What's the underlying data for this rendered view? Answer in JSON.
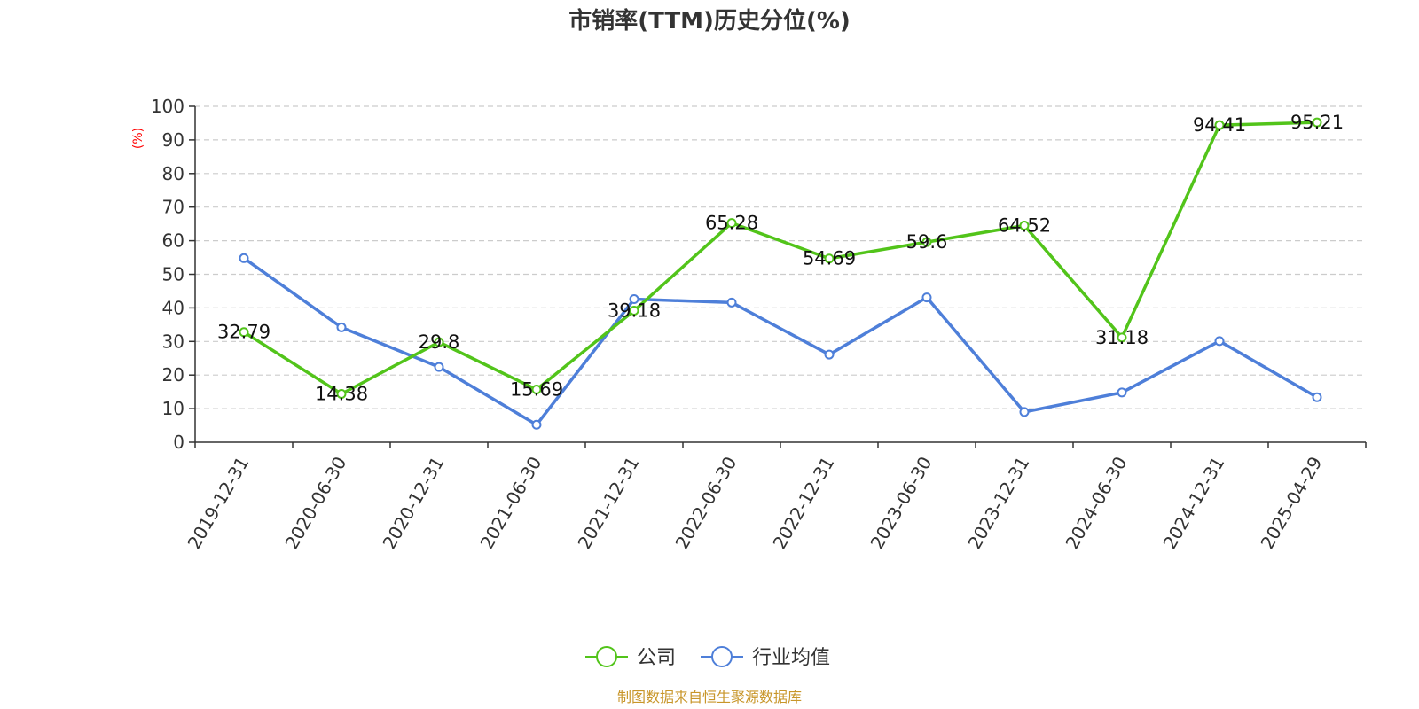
{
  "chart_data": {
    "type": "line",
    "title": "市销率(TTM)历史分位(%)",
    "ylabel": "(%)",
    "ylim": [
      0,
      100
    ],
    "yticks": [
      0,
      10,
      20,
      30,
      40,
      50,
      60,
      70,
      80,
      90,
      100
    ],
    "categories": [
      "2019-12-31",
      "2020-06-30",
      "2020-12-31",
      "2021-06-30",
      "2021-12-31",
      "2022-06-30",
      "2022-12-31",
      "2023-06-30",
      "2023-12-31",
      "2024-06-30",
      "2024-12-31",
      "2025-04-29"
    ],
    "grid": true,
    "legend_position": "bottom",
    "series": [
      {
        "name": "公司",
        "color": "#52c41a",
        "values": [
          32.79,
          14.38,
          29.8,
          15.69,
          39.18,
          65.28,
          54.69,
          59.6,
          64.52,
          31.18,
          94.41,
          95.21
        ],
        "labels": [
          "32.79",
          "14.38",
          "29.8",
          "15.69",
          "39.18",
          "65.28",
          "54.69",
          "59.6",
          "64.52",
          "31.18",
          "94.41",
          "95.21"
        ]
      },
      {
        "name": "行业均值",
        "color": "#4e7fd9",
        "values": [
          54.8,
          34.2,
          22.4,
          5.2,
          42.6,
          41.6,
          26.1,
          43.1,
          9.0,
          14.8,
          30.1,
          13.4
        ]
      }
    ]
  },
  "footer": {
    "source": "制图数据来自恒生聚源数据库"
  }
}
